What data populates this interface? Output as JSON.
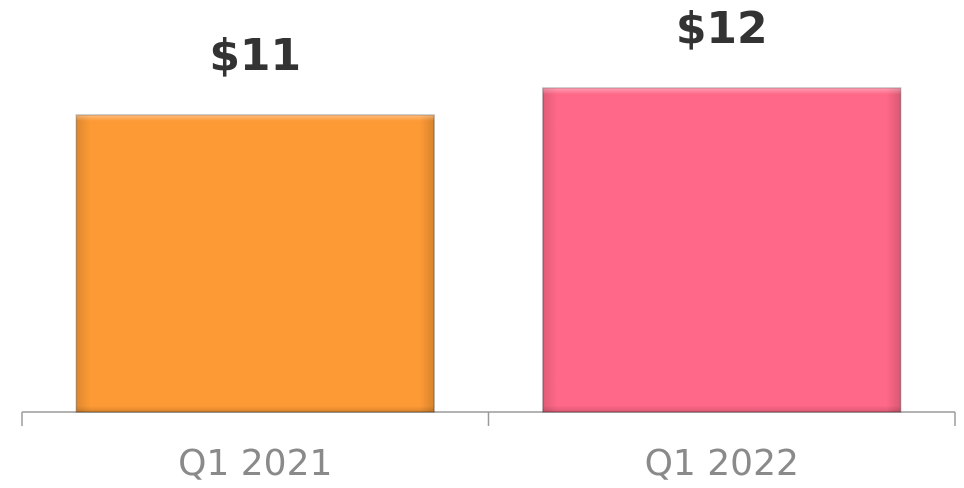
{
  "chart_data": {
    "type": "bar",
    "categories": [
      "Q1 2021",
      "Q1 2022"
    ],
    "values": [
      11,
      12
    ],
    "value_labels": [
      "$11",
      "$12"
    ],
    "colors": [
      "#fd9a35",
      "#ff6888"
    ],
    "grid": false
  }
}
